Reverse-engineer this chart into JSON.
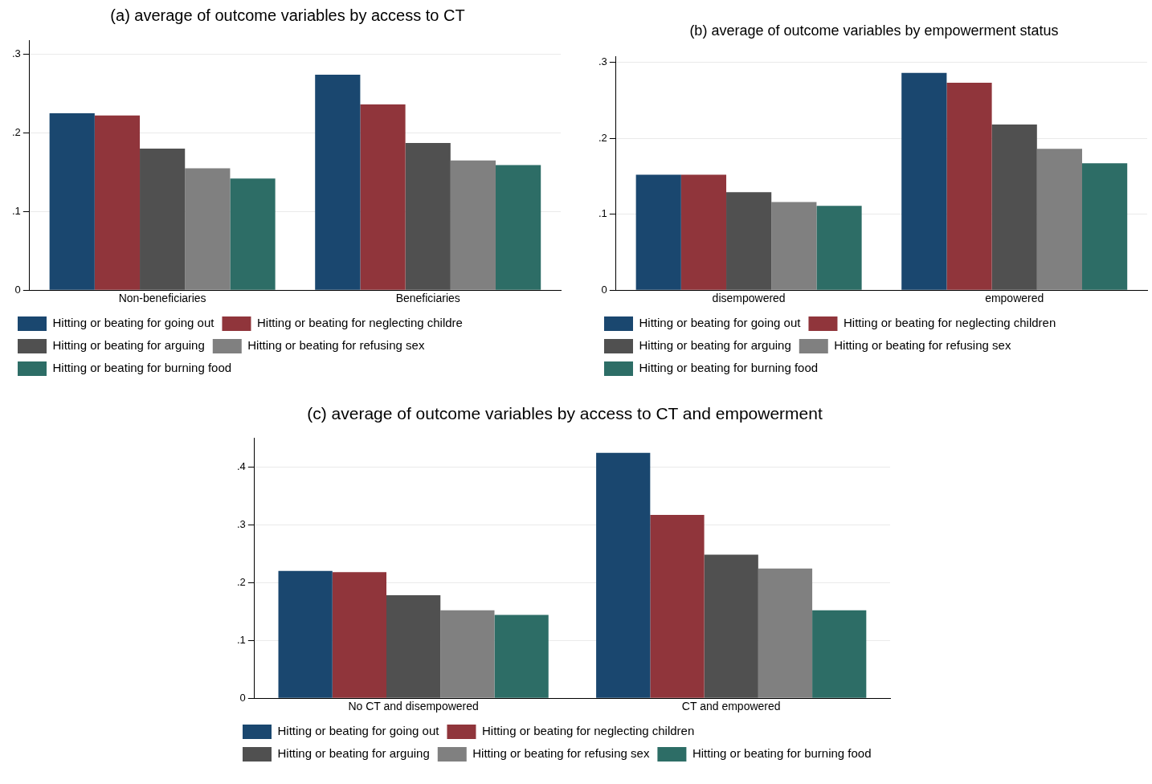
{
  "chart_data": [
    {
      "type": "bar",
      "title": "(a) average of outcome variables by access to CT",
      "categories": [
        "Non-beneficiaries",
        "Beneficiaries"
      ],
      "series": [
        {
          "name": "Hitting or beating for going out",
          "color": "#1a476f",
          "values": [
            0.225,
            0.274
          ]
        },
        {
          "name": "Hitting or beating for neglecting childre",
          "color": "#90353b",
          "values": [
            0.222,
            0.236
          ]
        },
        {
          "name": "Hitting or beating for arguing",
          "color": "#505050",
          "values": [
            0.18,
            0.187
          ]
        },
        {
          "name": "Hitting or beating for refusing sex",
          "color": "#808080",
          "values": [
            0.155,
            0.165
          ]
        },
        {
          "name": "Hitting or beating for burning food",
          "color": "#2d6d66",
          "values": [
            0.142,
            0.159
          ]
        }
      ],
      "ylim": [
        0,
        0.317
      ],
      "yticks": [
        {
          "value": 0,
          "label": "0"
        },
        {
          "value": 0.1,
          "label": ".1"
        },
        {
          "value": 0.2,
          "label": ".2"
        },
        {
          "value": 0.3,
          "label": ".3"
        }
      ],
      "grid": "y",
      "legend": "bottom"
    },
    {
      "type": "bar",
      "title": "(b) average of outcome variables by empowerment status",
      "categories": [
        "disempowered",
        "empowered"
      ],
      "series": [
        {
          "name": "Hitting or beating for going out",
          "color": "#1a476f",
          "values": [
            0.152,
            0.286
          ]
        },
        {
          "name": "Hitting or beating for neglecting children",
          "color": "#90353b",
          "values": [
            0.152,
            0.273
          ]
        },
        {
          "name": "Hitting or beating for arguing",
          "color": "#505050",
          "values": [
            0.129,
            0.218
          ]
        },
        {
          "name": "Hitting or beating for refusing sex",
          "color": "#808080",
          "values": [
            0.116,
            0.186
          ]
        },
        {
          "name": "Hitting or beating for burning food",
          "color": "#2d6d66",
          "values": [
            0.111,
            0.167
          ]
        }
      ],
      "ylim": [
        0,
        0.307
      ],
      "yticks": [
        {
          "value": 0,
          "label": "0"
        },
        {
          "value": 0.1,
          "label": ".1"
        },
        {
          "value": 0.2,
          "label": ".2"
        },
        {
          "value": 0.3,
          "label": ".3"
        }
      ],
      "grid": "y",
      "legend": "bottom"
    },
    {
      "type": "bar",
      "title": "(c) average of outcome variables by access to CT and empowerment",
      "categories": [
        "No CT and disempowered",
        "CT and empowered"
      ],
      "series": [
        {
          "name": "Hitting or beating for going out",
          "color": "#1a476f",
          "values": [
            0.22,
            0.424
          ]
        },
        {
          "name": "Hitting or beating for neglecting children",
          "color": "#90353b",
          "values": [
            0.218,
            0.317
          ]
        },
        {
          "name": "Hitting or beating for arguing",
          "color": "#505050",
          "values": [
            0.178,
            0.248
          ]
        },
        {
          "name": "Hitting or beating for refusing sex",
          "color": "#808080",
          "values": [
            0.152,
            0.224
          ]
        },
        {
          "name": "Hitting or beating for burning food",
          "color": "#2d6d66",
          "values": [
            0.144,
            0.152
          ]
        }
      ],
      "ylim": [
        0,
        0.449
      ],
      "yticks": [
        {
          "value": 0,
          "label": "0"
        },
        {
          "value": 0.1,
          "label": ".1"
        },
        {
          "value": 0.2,
          "label": ".2"
        },
        {
          "value": 0.3,
          "label": ".3"
        },
        {
          "value": 0.4,
          "label": ".4"
        }
      ],
      "grid": "y",
      "legend": "bottom"
    }
  ]
}
